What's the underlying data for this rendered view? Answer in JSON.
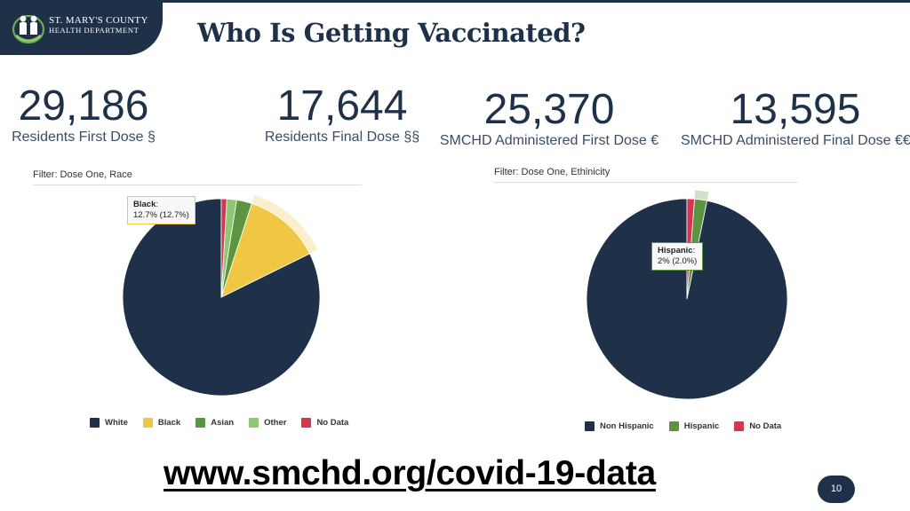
{
  "header": {
    "logo_line1": "ST. MARY'S COUNTY",
    "logo_line2": "HEALTH DEPARTMENT",
    "title": "Who Is Getting Vaccinated?"
  },
  "stats": [
    {
      "value": "29,186",
      "label": "Residents First Dose §"
    },
    {
      "value": "17,644",
      "label": "Residents Final Dose §§"
    },
    {
      "value": "25,370",
      "label": "SMCHD Administered First Dose €"
    },
    {
      "value": "13,595",
      "label": "SMCHD Administered Final Dose €€"
    }
  ],
  "colors": {
    "navy": "#1e3148",
    "white_series": "#1e3148",
    "black_series": "#efc745",
    "asian_series": "#5b9540",
    "other_series": "#8fc873",
    "nodata_series": "#d7344f"
  },
  "chart_data": [
    {
      "type": "pie",
      "filter": "Filter: Dose One, Race",
      "categories": [
        "White",
        "Black",
        "Asian",
        "Other",
        "No Data"
      ],
      "values": [
        82.3,
        12.7,
        2.5,
        1.6,
        0.9
      ],
      "colors": [
        "#1e3148",
        "#efc745",
        "#5b9540",
        "#8fc873",
        "#d7344f"
      ],
      "highlight": 1,
      "tooltip": {
        "name": "Black",
        "text": "12.7% (12.7%)"
      },
      "legend_position": "bottom"
    },
    {
      "type": "pie",
      "filter": "Filter: Dose One, Ethinicity",
      "categories": [
        "Non Hispanic",
        "Hispanic",
        "No Data"
      ],
      "values": [
        96.8,
        2.0,
        1.2
      ],
      "colors": [
        "#1e3148",
        "#5b9540",
        "#d7344f"
      ],
      "highlight": 1,
      "tooltip": {
        "name": "Hispanic",
        "text": "2% (2.0%)"
      },
      "legend_position": "bottom"
    }
  ],
  "footer": {
    "url": "www.smchd.org/covid-19-data",
    "page_number": "10"
  }
}
